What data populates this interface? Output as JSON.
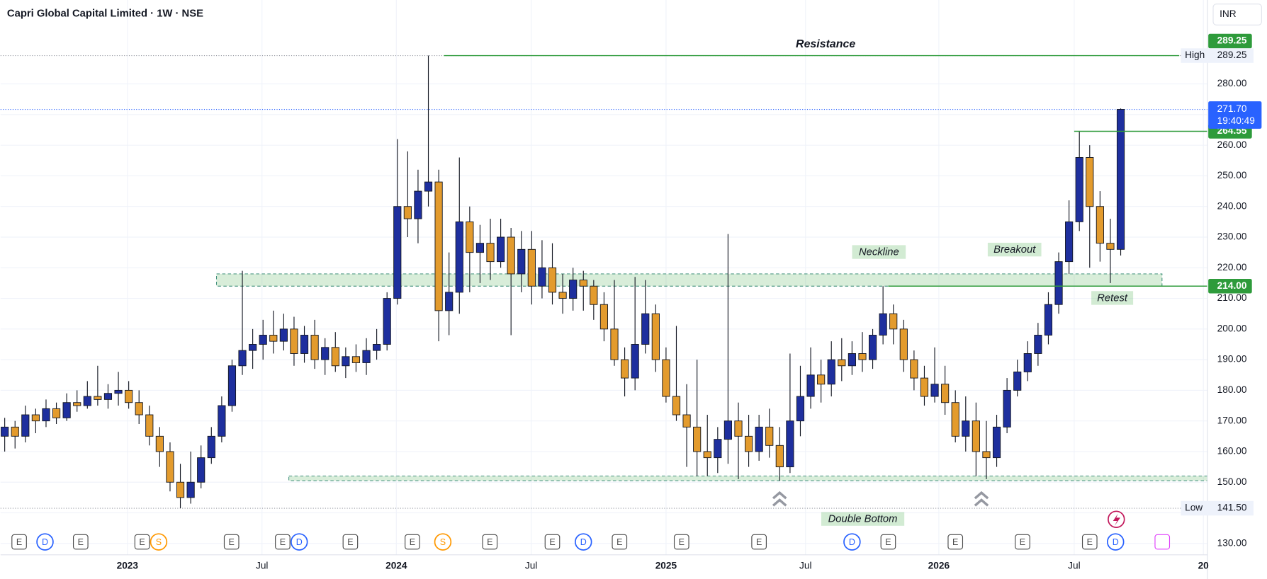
{
  "chart_data": {
    "type": "candlestick",
    "title": "Capri Global Capital Limited · 1W · NSE",
    "currency": "INR",
    "up_color": "#1e2f9e",
    "down_color": "#e39b2d",
    "x": [
      0,
      2,
      4,
      6,
      8,
      10,
      12,
      14,
      16,
      18,
      20,
      22,
      24,
      26,
      28,
      30,
      32,
      34,
      36,
      38,
      40,
      42,
      44,
      46,
      48,
      50,
      52,
      54,
      56,
      58,
      60,
      62,
      64,
      66,
      68,
      70,
      72,
      74,
      76,
      78,
      80,
      82,
      84,
      86,
      88,
      90,
      92,
      94,
      96,
      98,
      100,
      102,
      104,
      106,
      108,
      110,
      112,
      114,
      116,
      118,
      120,
      122,
      124,
      126,
      128,
      130,
      132,
      134,
      136,
      138,
      140,
      142,
      144,
      146,
      148,
      150,
      152,
      154,
      156,
      158,
      160,
      162,
      164,
      166,
      168,
      170,
      172,
      174,
      176,
      178,
      180,
      182,
      184,
      186,
      188,
      190,
      192,
      194,
      196,
      198,
      200,
      202,
      204,
      206,
      208,
      210,
      212,
      214,
      216
    ],
    "ohlc": [
      [
        165,
        171,
        160,
        168
      ],
      [
        168,
        170,
        161,
        165
      ],
      [
        165,
        175,
        163,
        172
      ],
      [
        172,
        174,
        166,
        170
      ],
      [
        170,
        177,
        168,
        174
      ],
      [
        174,
        176,
        169,
        171
      ],
      [
        171,
        179,
        170,
        176
      ],
      [
        176,
        180,
        173,
        175
      ],
      [
        175,
        183,
        174,
        178
      ],
      [
        178,
        188,
        175,
        177
      ],
      [
        177,
        182,
        174,
        179
      ],
      [
        179,
        186,
        175,
        180
      ],
      [
        180,
        183,
        174,
        176
      ],
      [
        176,
        180,
        169,
        172
      ],
      [
        172,
        175,
        162,
        165
      ],
      [
        165,
        168,
        155,
        160
      ],
      [
        160,
        163,
        147,
        150
      ],
      [
        150,
        156,
        141.5,
        145
      ],
      [
        145,
        160,
        143,
        150
      ],
      [
        150,
        162,
        148,
        158
      ],
      [
        158,
        168,
        156,
        165
      ],
      [
        165,
        178,
        163,
        175
      ],
      [
        175,
        190,
        173,
        188
      ],
      [
        188,
        219,
        185,
        193
      ],
      [
        193,
        200,
        187,
        195
      ],
      [
        195,
        203,
        190,
        198
      ],
      [
        198,
        206,
        192,
        196
      ],
      [
        196,
        205,
        193,
        200
      ],
      [
        200,
        204,
        188,
        192
      ],
      [
        192,
        201,
        189,
        198
      ],
      [
        198,
        203,
        187,
        190
      ],
      [
        190,
        197,
        185,
        194
      ],
      [
        194,
        199,
        186,
        188
      ],
      [
        188,
        194,
        184,
        191
      ],
      [
        191,
        195,
        186,
        189
      ],
      [
        189,
        197,
        185,
        193
      ],
      [
        193,
        200,
        190,
        195
      ],
      [
        195,
        212,
        193,
        210
      ],
      [
        210,
        262,
        208,
        240
      ],
      [
        240,
        258,
        230,
        236
      ],
      [
        236,
        252,
        228,
        245
      ],
      [
        245,
        289.25,
        240,
        248
      ],
      [
        248,
        252,
        196,
        206
      ],
      [
        206,
        225,
        198,
        212
      ],
      [
        212,
        256,
        205,
        235
      ],
      [
        235,
        240,
        212,
        225
      ],
      [
        225,
        234,
        215,
        228
      ],
      [
        228,
        236,
        216,
        222
      ],
      [
        222,
        236,
        220,
        230
      ],
      [
        230,
        233,
        198,
        218
      ],
      [
        218,
        232,
        212,
        226
      ],
      [
        226,
        232,
        208,
        214
      ],
      [
        214,
        229,
        210,
        220
      ],
      [
        220,
        228,
        208,
        212
      ],
      [
        212,
        218,
        205,
        210
      ],
      [
        210,
        220,
        206,
        216
      ],
      [
        216,
        219,
        206,
        214
      ],
      [
        214,
        216,
        203,
        208
      ],
      [
        208,
        212,
        196,
        200
      ],
      [
        200,
        216,
        188,
        190
      ],
      [
        190,
        194,
        178,
        184
      ],
      [
        184,
        217,
        180,
        195
      ],
      [
        195,
        216,
        192,
        205
      ],
      [
        205,
        208,
        186,
        190
      ],
      [
        190,
        194,
        176,
        178
      ],
      [
        178,
        201,
        170,
        172
      ],
      [
        172,
        182,
        155,
        168
      ],
      [
        168,
        190,
        152,
        160
      ],
      [
        160,
        172,
        152,
        158
      ],
      [
        158,
        168,
        153,
        164
      ],
      [
        164,
        231,
        156,
        170
      ],
      [
        170,
        176,
        151,
        165
      ],
      [
        165,
        172,
        155,
        160
      ],
      [
        160,
        172,
        157,
        168
      ],
      [
        168,
        174,
        158,
        162
      ],
      [
        162,
        168,
        150.5,
        155
      ],
      [
        155,
        192,
        153,
        170
      ],
      [
        170,
        188,
        165,
        178
      ],
      [
        178,
        194,
        174,
        185
      ],
      [
        185,
        190,
        176,
        182
      ],
      [
        182,
        196,
        178,
        190
      ],
      [
        190,
        197,
        183,
        188
      ],
      [
        188,
        196,
        185,
        192
      ],
      [
        192,
        199,
        186,
        190
      ],
      [
        190,
        200,
        187,
        198
      ],
      [
        198,
        214,
        195,
        205
      ],
      [
        205,
        208,
        195,
        200
      ],
      [
        200,
        203,
        186,
        190
      ],
      [
        190,
        193,
        180,
        184
      ],
      [
        184,
        188,
        175,
        178
      ],
      [
        178,
        194,
        176,
        182
      ],
      [
        182,
        188,
        172,
        176
      ],
      [
        176,
        180,
        163,
        165
      ],
      [
        165,
        178,
        160,
        170
      ],
      [
        170,
        176,
        152,
        160
      ],
      [
        160,
        170,
        151,
        158
      ],
      [
        158,
        172,
        155,
        168
      ],
      [
        168,
        184,
        166,
        180
      ],
      [
        180,
        190,
        178,
        186
      ],
      [
        186,
        196,
        183,
        192
      ],
      [
        192,
        202,
        188,
        198
      ],
      [
        198,
        212,
        195,
        208
      ],
      [
        208,
        225,
        205,
        222
      ],
      [
        222,
        242,
        218,
        235
      ],
      [
        235,
        264.55,
        232,
        256
      ],
      [
        256,
        260,
        220,
        240
      ],
      [
        240,
        245,
        222,
        228
      ],
      [
        228,
        236,
        215,
        226
      ],
      [
        226,
        272,
        224,
        271.7
      ]
    ],
    "xlim": [
      -0.8,
      232.8
    ],
    "xticks": [
      {
        "value": 23.75,
        "label": "2023"
      },
      {
        "value": 49.8,
        "label": "Jul"
      },
      {
        "value": 75.8,
        "label": "2024"
      },
      {
        "value": 101.9,
        "label": "Jul"
      },
      {
        "value": 128,
        "label": "2025"
      },
      {
        "value": 155,
        "label": "Jul"
      },
      {
        "value": 180.8,
        "label": "2026"
      },
      {
        "value": 207,
        "label": "Jul"
      },
      {
        "value": 232,
        "label": "20"
      }
    ],
    "ylim": [
      126.3,
      307.4
    ],
    "yticks": [
      {
        "value": 130,
        "label": "130.00"
      },
      {
        "value": 140,
        "label": "140.00"
      },
      {
        "value": 150,
        "label": "150.00"
      },
      {
        "value": 160,
        "label": "160.00"
      },
      {
        "value": 170,
        "label": "170.00"
      },
      {
        "value": 180,
        "label": "180.00"
      },
      {
        "value": 190,
        "label": "190.00"
      },
      {
        "value": 200,
        "label": "200.00"
      },
      {
        "value": 210,
        "label": "210.00"
      },
      {
        "value": 220,
        "label": "220.00"
      },
      {
        "value": 230,
        "label": "230.00"
      },
      {
        "value": 240,
        "label": "240.00"
      },
      {
        "value": 250,
        "label": "250.00"
      },
      {
        "value": 260,
        "label": "260.00"
      },
      {
        "value": 270,
        "label": "270.00"
      },
      {
        "value": 280,
        "label": "280.00"
      }
    ],
    "grid": true,
    "high": {
      "name": "High",
      "value": 289.25,
      "label": "289.25"
    },
    "low": {
      "name": "Low",
      "value": 141.5,
      "label": "141.50"
    },
    "last": {
      "value": 271.7,
      "label": "271.70",
      "countdown": "19:40:49"
    },
    "lines": [
      {
        "value": 289.25,
        "label": "289.25",
        "from": 85
      },
      {
        "value": 264.55,
        "label": "264.55",
        "from": 207
      },
      {
        "value": 214,
        "label": "214.00",
        "from": 171
      }
    ],
    "zones": [
      {
        "from": 214,
        "to": 218,
        "start": 41,
        "end": 224
      },
      {
        "from": 150.5,
        "to": 152,
        "start": 55,
        "end": 232.8
      }
    ],
    "annotations": [
      "Resistance",
      "Neckline",
      "Breakout",
      "Retest",
      "Double Bottom"
    ],
    "events": [
      {
        "x": 2.8,
        "label": "E"
      },
      {
        "x": 7.8,
        "label": "D"
      },
      {
        "x": 14.7,
        "label": "E"
      },
      {
        "x": 26.6,
        "label": "E"
      },
      {
        "x": 29.8,
        "label": "S"
      },
      {
        "x": 43.9,
        "label": "E"
      },
      {
        "x": 53.8,
        "label": "E"
      },
      {
        "x": 57,
        "label": "D"
      },
      {
        "x": 66.9,
        "label": "E"
      },
      {
        "x": 78.9,
        "label": "E"
      },
      {
        "x": 84.8,
        "label": "S"
      },
      {
        "x": 93.9,
        "label": "E"
      },
      {
        "x": 106,
        "label": "E"
      },
      {
        "x": 112,
        "label": "D"
      },
      {
        "x": 119,
        "label": "E"
      },
      {
        "x": 131,
        "label": "E"
      },
      {
        "x": 146,
        "label": "E"
      },
      {
        "x": 164,
        "label": "D"
      },
      {
        "x": 171,
        "label": "E"
      },
      {
        "x": 184,
        "label": "E"
      },
      {
        "x": 197,
        "label": "E"
      },
      {
        "x": 210,
        "label": "E"
      },
      {
        "x": 215,
        "label": "D"
      }
    ]
  }
}
